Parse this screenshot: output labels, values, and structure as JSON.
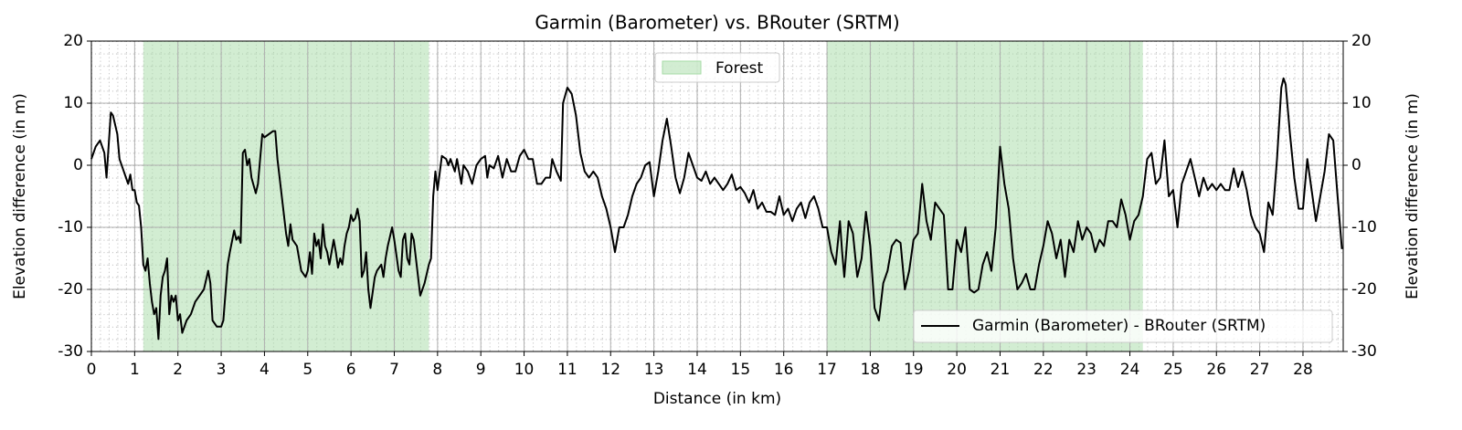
{
  "chart_data": {
    "type": "line",
    "title": "Garmin (Barometer) vs. BRouter (SRTM)",
    "x_label": "Distance (in km)",
    "y_label": "Elevation difference (in m)",
    "y2_label": "Elevation difference (in m)",
    "xlim": [
      0,
      28.93
    ],
    "ylim": [
      -30,
      20
    ],
    "y2lim": [
      -30,
      20
    ],
    "xticks": [
      0,
      1,
      2,
      3,
      4,
      5,
      6,
      7,
      8,
      9,
      10,
      11,
      12,
      13,
      14,
      15,
      16,
      17,
      18,
      19,
      20,
      21,
      22,
      23,
      24,
      25,
      26,
      27,
      28
    ],
    "yticks": [
      -30,
      -20,
      -10,
      0,
      10,
      20
    ],
    "y2ticks": [
      -30,
      -20,
      -10,
      0,
      10,
      20
    ],
    "grid": true,
    "minor_grid": true,
    "legend_loc": "lower right",
    "span_legend_loc": "upper center",
    "span_label": "Forest",
    "span_color": "#a6dba6",
    "spans": [
      {
        "from": 1.2,
        "to": 7.8
      },
      {
        "from": 17.0,
        "to": 24.3
      }
    ],
    "x": [
      0,
      0.1,
      0.2,
      0.3,
      0.35,
      0.45,
      0.5,
      0.6,
      0.65,
      0.75,
      0.85,
      0.9,
      0.95,
      1.0,
      1.05,
      1.1,
      1.15,
      1.2,
      1.25,
      1.3,
      1.35,
      1.4,
      1.45,
      1.5,
      1.55,
      1.6,
      1.65,
      1.7,
      1.75,
      1.8,
      1.85,
      1.9,
      1.95,
      2.0,
      2.05,
      2.1,
      2.2,
      2.3,
      2.4,
      2.5,
      2.6,
      2.7,
      2.75,
      2.8,
      2.9,
      3.0,
      3.05,
      3.15,
      3.2,
      3.3,
      3.35,
      3.4,
      3.45,
      3.5,
      3.55,
      3.6,
      3.65,
      3.7,
      3.8,
      3.85,
      3.95,
      4.0,
      4.1,
      4.2,
      4.25,
      4.3,
      4.4,
      4.5,
      4.55,
      4.6,
      4.65,
      4.75,
      4.85,
      4.95,
      5.0,
      5.05,
      5.1,
      5.15,
      5.2,
      5.25,
      5.3,
      5.35,
      5.4,
      5.45,
      5.5,
      5.6,
      5.65,
      5.7,
      5.75,
      5.8,
      5.85,
      5.9,
      5.95,
      6.0,
      6.05,
      6.1,
      6.15,
      6.2,
      6.25,
      6.3,
      6.35,
      6.4,
      6.45,
      6.55,
      6.6,
      6.7,
      6.75,
      6.8,
      6.85,
      6.95,
      7.0,
      7.1,
      7.15,
      7.2,
      7.25,
      7.3,
      7.35,
      7.4,
      7.45,
      7.55,
      7.6,
      7.7,
      7.8,
      7.85,
      7.9,
      7.95,
      8.0,
      8.1,
      8.2,
      8.25,
      8.3,
      8.4,
      8.45,
      8.55,
      8.6,
      8.7,
      8.8,
      8.9,
      9.0,
      9.1,
      9.15,
      9.2,
      9.3,
      9.4,
      9.5,
      9.6,
      9.7,
      9.8,
      9.9,
      10.0,
      10.1,
      10.2,
      10.3,
      10.4,
      10.5,
      10.6,
      10.65,
      10.75,
      10.85,
      10.9,
      11.0,
      11.1,
      11.2,
      11.3,
      11.4,
      11.5,
      11.6,
      11.7,
      11.8,
      11.9,
      12.0,
      12.1,
      12.2,
      12.3,
      12.4,
      12.5,
      12.6,
      12.7,
      12.8,
      12.9,
      13.0,
      13.1,
      13.2,
      13.3,
      13.4,
      13.5,
      13.6,
      13.7,
      13.8,
      13.9,
      14.0,
      14.1,
      14.2,
      14.3,
      14.4,
      14.5,
      14.6,
      14.7,
      14.8,
      14.9,
      15.0,
      15.1,
      15.2,
      15.3,
      15.4,
      15.5,
      15.6,
      15.7,
      15.8,
      15.9,
      16.0,
      16.1,
      16.2,
      16.3,
      16.4,
      16.5,
      16.6,
      16.7,
      16.8,
      16.9,
      17.0,
      17.1,
      17.2,
      17.3,
      17.35,
      17.4,
      17.5,
      17.6,
      17.7,
      17.8,
      17.9,
      18.0,
      18.1,
      18.2,
      18.3,
      18.4,
      18.5,
      18.6,
      18.7,
      18.8,
      18.9,
      19.0,
      19.1,
      19.2,
      19.3,
      19.4,
      19.5,
      19.7,
      19.8,
      19.9,
      20.0,
      20.1,
      20.2,
      20.3,
      20.4,
      20.5,
      20.6,
      20.7,
      20.8,
      20.9,
      21.0,
      21.1,
      21.2,
      21.3,
      21.4,
      21.5,
      21.6,
      21.7,
      21.8,
      21.9,
      22.0,
      22.1,
      22.2,
      22.3,
      22.4,
      22.5,
      22.6,
      22.7,
      22.8,
      22.9,
      23.0,
      23.1,
      23.2,
      23.3,
      23.4,
      23.5,
      23.6,
      23.7,
      23.8,
      23.9,
      24.0,
      24.1,
      24.2,
      24.3,
      24.4,
      24.5,
      24.6,
      24.7,
      24.8,
      24.9,
      25.0,
      25.1,
      25.2,
      25.3,
      25.4,
      25.5,
      25.6,
      25.7,
      25.8,
      25.9,
      26.0,
      26.1,
      26.2,
      26.3,
      26.4,
      26.5,
      26.6,
      26.7,
      26.8,
      26.9,
      27.0,
      27.1,
      27.2,
      27.3,
      27.4,
      27.5,
      27.55,
      27.6,
      27.7,
      27.8,
      27.9,
      28.0,
      28.1,
      28.2,
      28.3,
      28.4,
      28.5,
      28.6,
      28.7,
      28.8,
      28.9
    ],
    "series": [
      {
        "name": "Garmin (Barometer) - BRouter (SRTM)",
        "color": "#000000",
        "values": [
          1,
          3,
          4,
          2,
          -2,
          8.5,
          8,
          5,
          1,
          -1,
          -3,
          -1.5,
          -4,
          -4,
          -6,
          -6.5,
          -10,
          -16,
          -17,
          -15,
          -19,
          -22,
          -24,
          -23,
          -28,
          -21,
          -18,
          -17,
          -15,
          -24,
          -21,
          -22,
          -21,
          -25,
          -24,
          -27,
          -25,
          -24,
          -22,
          -21,
          -20,
          -17,
          -19,
          -25,
          -26,
          -26,
          -25,
          -16,
          -14,
          -10.5,
          -12,
          -11.5,
          -12.5,
          2,
          2.5,
          0,
          1,
          -2,
          -4.5,
          -3,
          5,
          4.5,
          5,
          5.5,
          5.5,
          1,
          -5,
          -11,
          -13,
          -9.5,
          -12,
          -13,
          -17,
          -18,
          -17,
          -14,
          -17.5,
          -11,
          -13,
          -12,
          -15,
          -9.5,
          -13,
          -14,
          -16,
          -12,
          -14,
          -16.5,
          -15,
          -16,
          -13,
          -11,
          -10,
          -8,
          -9,
          -8.5,
          -7,
          -9,
          -18,
          -17,
          -14,
          -20,
          -23,
          -18,
          -17,
          -16,
          -18,
          -15,
          -13,
          -10,
          -12,
          -17,
          -18,
          -12,
          -11,
          -15,
          -16,
          -11,
          -12,
          -18,
          -21,
          -19,
          -16,
          -15,
          -5,
          -1,
          -4,
          1.5,
          1,
          0,
          1,
          -1,
          1,
          -3,
          0,
          -1,
          -3,
          0,
          1,
          1.5,
          -2,
          0,
          -0.5,
          1.5,
          -2,
          1,
          -1,
          -1,
          1.5,
          2.5,
          1,
          1,
          -3,
          -3,
          -2,
          -2,
          1,
          -1,
          -2.5,
          10,
          12.5,
          11.5,
          8,
          2,
          -1,
          -2,
          -1,
          -2,
          -5,
          -7,
          -10,
          -14,
          -10,
          -10,
          -8,
          -5,
          -3,
          -2,
          0,
          0.5,
          -5,
          -1,
          4,
          7.5,
          3,
          -2,
          -4.5,
          -2,
          2,
          0,
          -2,
          -2.5,
          -1,
          -3,
          -2,
          -3,
          -4,
          -3,
          -1.5,
          -4,
          -3.5,
          -4.5,
          -6,
          -4,
          -7,
          -6,
          -7.5,
          -7.5,
          -8,
          -5,
          -8,
          -7,
          -9,
          -7,
          -6,
          -8.5,
          -6,
          -5,
          -7,
          -10,
          -10,
          -14,
          -16,
          -9,
          -14,
          -18,
          -9,
          -11,
          -18,
          -15,
          -7.5,
          -13,
          -23,
          -25,
          -19,
          -17,
          -13,
          -12,
          -12.5,
          -20,
          -17,
          -12,
          -11,
          -3,
          -9,
          -12,
          -6,
          -8,
          -20,
          -20,
          -12,
          -14,
          -10,
          -20,
          -20.5,
          -20,
          -16,
          -14,
          -17,
          -10,
          3,
          -3,
          -7,
          -15,
          -20,
          -19,
          -17.5,
          -20,
          -20,
          -16,
          -13,
          -9,
          -11,
          -15,
          -12,
          -18,
          -12,
          -14,
          -9,
          -12,
          -10,
          -11,
          -14,
          -12,
          -13,
          -9,
          -9,
          -10,
          -5.5,
          -8,
          -12,
          -9,
          -8,
          -5,
          1,
          2,
          -3,
          -2,
          4,
          -5,
          -4,
          -10,
          -3,
          -1,
          1,
          -2,
          -5,
          -2,
          -4,
          -3,
          -4,
          -3,
          -4,
          -4,
          -0.5,
          -3.5,
          -1,
          -4,
          -8,
          -10,
          -11,
          -14,
          -6,
          -8,
          1,
          12.5,
          14,
          13,
          5,
          -2,
          -7,
          -7,
          1,
          -4,
          -9,
          -5,
          -1,
          5,
          4,
          -5,
          -13.5
        ]
      }
    ]
  }
}
